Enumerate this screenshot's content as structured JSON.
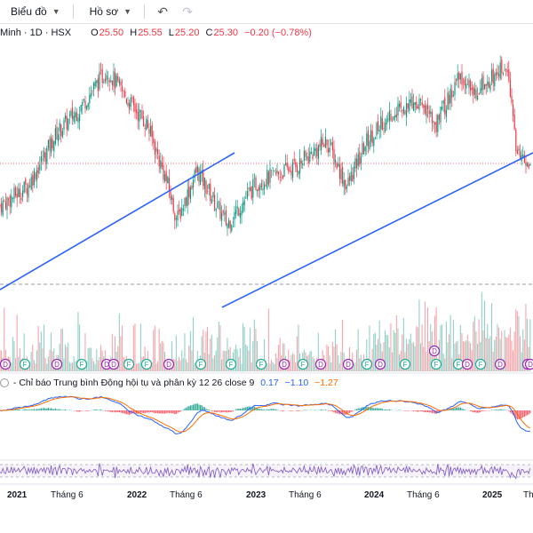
{
  "toolbar": {
    "chart_menu": "Biểu đồ",
    "profile_menu": "Hồ sơ",
    "undo_icon": "undo-icon",
    "redo_icon": "redo-icon"
  },
  "legend": {
    "symbol": "Minh · 1D · HSX",
    "o_label": "O",
    "o_value": "25.50",
    "h_label": "H",
    "h_value": "25.55",
    "l_label": "L",
    "l_value": "25.20",
    "c_label": "C",
    "c_value": "25.30",
    "change": "−0.20 (−0.78%)"
  },
  "macd": {
    "title": "- Chỉ báo Trung bình Động hội tụ và phân kỳ 12 26 close 9",
    "v1": "0.17",
    "v2": "−1.10",
    "v3": "−1.27"
  },
  "xaxis": {
    "labels": [
      "2021",
      "Tháng 6",
      "2022",
      "Tháng 6",
      "2023",
      "Tháng 6",
      "2024",
      "Tháng 6",
      "2025",
      "Th"
    ]
  },
  "events": {
    "labels": [
      "D",
      "F",
      "D",
      "F",
      "D",
      "D",
      "F",
      "F",
      "D",
      "F",
      "F",
      "F",
      "D",
      "F",
      "D",
      "D",
      "F",
      "D",
      "F",
      "D",
      "F",
      "F",
      "D",
      "F",
      "D",
      "D",
      "D"
    ]
  },
  "colors": {
    "up": "#089981",
    "down": "#f23645",
    "trendline": "#2962ff",
    "macd_line": "#2962ff",
    "signal_line": "#ff6d00",
    "rsi_line": "#7e57c2"
  },
  "chart_data": {
    "type": "candlestick",
    "ticker": "Minh · 1D · HSX",
    "last_close": 25.3,
    "x_range": [
      "2020-10",
      "2025-05"
    ],
    "price_path": [
      [
        "2020-10",
        18.0
      ],
      [
        "2020-12",
        20.0
      ],
      [
        "2021-03",
        22.5
      ],
      [
        "2021-06",
        29.0
      ],
      [
        "2021-08",
        31.5
      ],
      [
        "2021-11",
        36.5
      ],
      [
        "2022-01",
        33.0
      ],
      [
        "2022-03",
        30.0
      ],
      [
        "2022-05",
        23.0
      ],
      [
        "2022-06",
        18.5
      ],
      [
        "2022-08",
        24.5
      ],
      [
        "2022-11",
        18.0
      ],
      [
        "2023-02",
        23.0
      ],
      [
        "2023-06",
        25.0
      ],
      [
        "2023-09",
        28.0
      ],
      [
        "2023-11",
        22.5
      ],
      [
        "2024-01",
        28.0
      ],
      [
        "2024-03",
        31.0
      ],
      [
        "2024-06",
        33.0
      ],
      [
        "2024-08",
        30.0
      ],
      [
        "2024-10",
        35.5
      ],
      [
        "2024-12",
        34.0
      ],
      [
        "2025-03",
        37.0
      ],
      [
        "2025-04",
        27.0
      ],
      [
        "2025-05",
        25.3
      ]
    ],
    "grid": false,
    "last_price_line": "dotted"
  }
}
